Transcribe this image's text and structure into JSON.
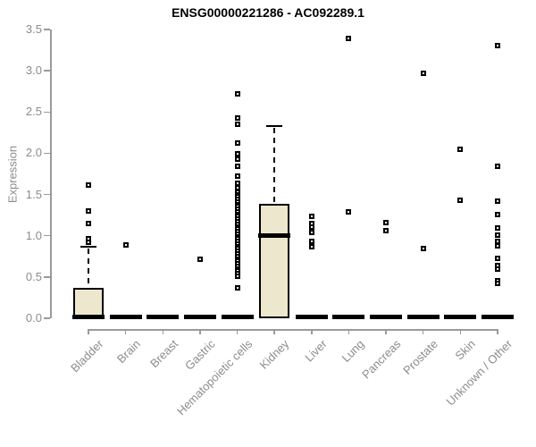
{
  "chart_data": {
    "type": "box",
    "title": "ENSG00000221286 - AC092289.1",
    "ylabel": "Expression",
    "xlabel": "",
    "ylim": [
      0,
      3.5
    ],
    "yticks": [
      0,
      0.5,
      1.0,
      1.5,
      2.0,
      2.5,
      3.0,
      3.5
    ],
    "ytick_labels": [
      "0.0",
      "0.5",
      "1.0",
      "1.5",
      "2.0",
      "2.5",
      "3.0",
      "3.5"
    ],
    "grid": false,
    "legend": "none",
    "colors": {
      "box_fill": "#ece7cd",
      "box_border": "#000000",
      "median": "#000000",
      "outlier": "#000000",
      "axis": "#9a9a9a",
      "tick_text": "#8c8c8c",
      "title_text": "#000000",
      "background": "#ffffff"
    },
    "categories": [
      "Bladder",
      "Brain",
      "Breast",
      "Gastric",
      "Hematopoietic cells",
      "Kidney",
      "Liver",
      "Lung",
      "Pancreas",
      "Prostate",
      "Skin",
      "Unknown / Other"
    ],
    "boxes": [
      {
        "category": "Bladder",
        "q1": 0,
        "median": 0,
        "q3": 0.37,
        "whisker_low": 0,
        "whisker_high": 0.87,
        "outliers": [
          1.61,
          1.3,
          1.15,
          0.96,
          0.92
        ]
      },
      {
        "category": "Brain",
        "q1": 0,
        "median": 0,
        "q3": 0,
        "whisker_low": 0,
        "whisker_high": 0,
        "outliers": [
          0.89
        ]
      },
      {
        "category": "Breast",
        "q1": 0,
        "median": 0,
        "q3": 0,
        "whisker_low": 0,
        "whisker_high": 0,
        "outliers": []
      },
      {
        "category": "Gastric",
        "q1": 0,
        "median": 0,
        "q3": 0,
        "whisker_low": 0,
        "whisker_high": 0,
        "outliers": [
          0.71
        ]
      },
      {
        "category": "Hematopoietic cells",
        "q1": 0,
        "median": 0,
        "q3": 0,
        "whisker_low": 0,
        "whisker_high": 0,
        "outliers": [
          2.72,
          2.43,
          2.35,
          2.12,
          1.99,
          1.93,
          1.84,
          1.72,
          1.64,
          1.58,
          1.53,
          1.5,
          1.47,
          1.44,
          1.41,
          1.38,
          1.35,
          1.32,
          1.29,
          1.26,
          1.23,
          1.2,
          1.17,
          1.14,
          1.11,
          1.08,
          1.05,
          1.02,
          0.99,
          0.96,
          0.93,
          0.9,
          0.87,
          0.84,
          0.81,
          0.78,
          0.75,
          0.72,
          0.69,
          0.66,
          0.63,
          0.6,
          0.57,
          0.54,
          0.51,
          0.37
        ]
      },
      {
        "category": "Kidney",
        "q1": 0,
        "median": 1.0,
        "q3": 1.39,
        "whisker_low": 0,
        "whisker_high": 2.33,
        "outliers": []
      },
      {
        "category": "Liver",
        "q1": 0,
        "median": 0,
        "q3": 0,
        "whisker_low": 0,
        "whisker_high": 0,
        "outliers": [
          1.23,
          1.15,
          1.11,
          1.04,
          0.93,
          0.87
        ]
      },
      {
        "category": "Lung",
        "q1": 0,
        "median": 0,
        "q3": 0,
        "whisker_low": 0,
        "whisker_high": 0,
        "outliers": [
          3.39,
          1.29
        ]
      },
      {
        "category": "Pancreas",
        "q1": 0,
        "median": 0,
        "q3": 0,
        "whisker_low": 0,
        "whisker_high": 0,
        "outliers": [
          1.16,
          1.06
        ]
      },
      {
        "category": "Prostate",
        "q1": 0,
        "median": 0,
        "q3": 0,
        "whisker_low": 0,
        "whisker_high": 0,
        "outliers": [
          2.97,
          0.85
        ]
      },
      {
        "category": "Skin",
        "q1": 0,
        "median": 0,
        "q3": 0,
        "whisker_low": 0,
        "whisker_high": 0,
        "outliers": [
          2.05,
          1.43
        ]
      },
      {
        "category": "Unknown / Other",
        "q1": 0,
        "median": 0,
        "q3": 0,
        "whisker_low": 0,
        "whisker_high": 0,
        "outliers": [
          3.31,
          1.84,
          1.42,
          1.26,
          1.09,
          1.01,
          0.93,
          0.88,
          0.73,
          0.64,
          0.6,
          0.46,
          0.42
        ]
      }
    ]
  }
}
